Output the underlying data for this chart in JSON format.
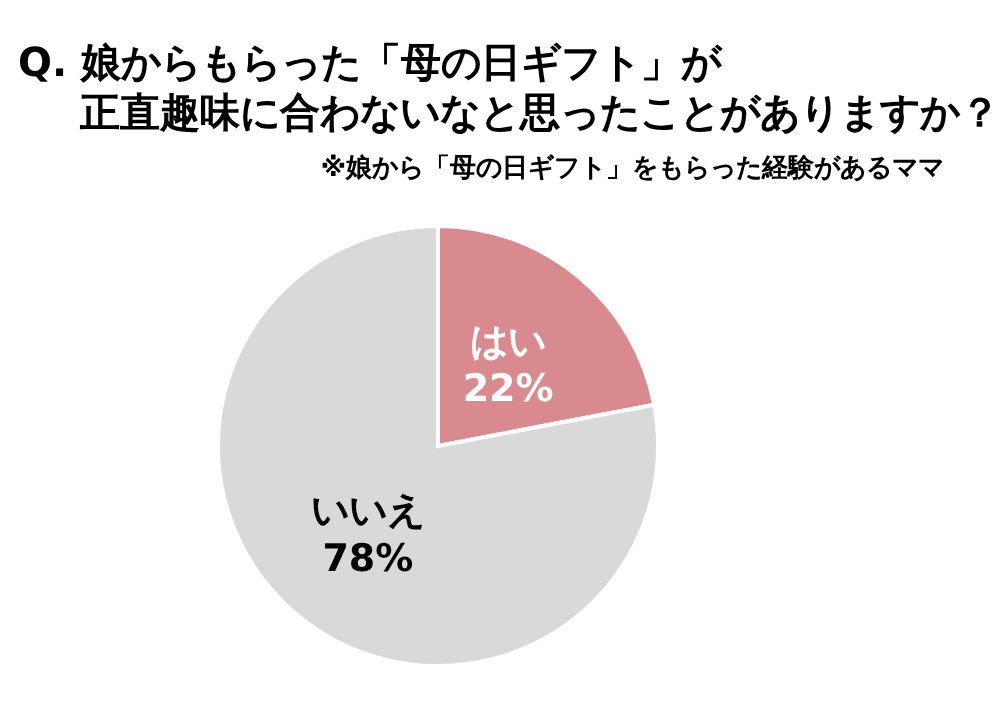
{
  "chart_data": {
    "type": "pie",
    "title": "Q. 娘からもらった「母の日ギフト」が",
    "subtitle": "正直趣味に合わないなと思ったことがありますか？",
    "annotations": [
      "※娘から「母の日ギフト」をもらった経験があるママ"
    ],
    "categories": [
      "はい",
      "いいえ"
    ],
    "values": [
      22,
      78
    ],
    "value_labels": [
      "22%",
      "78%"
    ],
    "colors": [
      "#d98a8e",
      "#d9d9d9"
    ]
  }
}
